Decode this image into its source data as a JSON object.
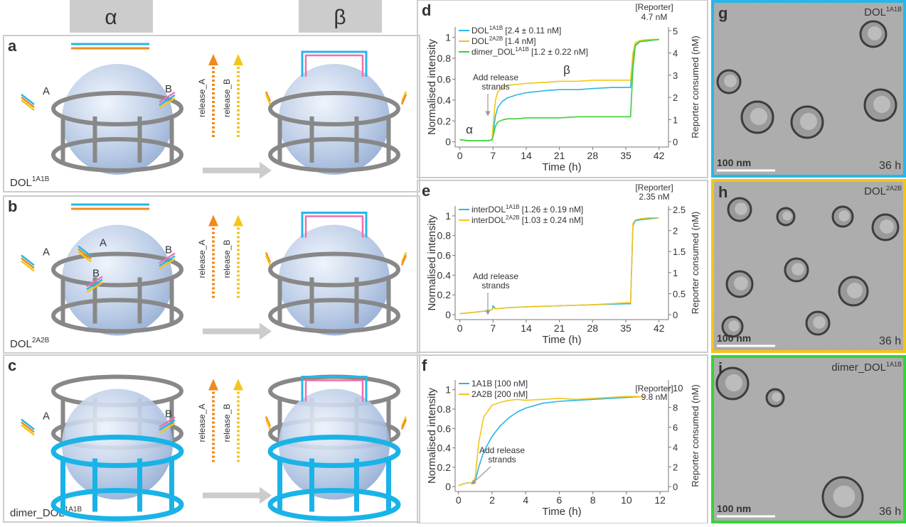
{
  "headers": {
    "alpha": "α",
    "beta": "β"
  },
  "panels": [
    {
      "letter": "a",
      "name": "DOL",
      "sup": "1A1B",
      "strand_labels": [
        "A",
        "B"
      ],
      "release": [
        "release_A",
        "release_B"
      ]
    },
    {
      "letter": "b",
      "name": "DOL",
      "sup": "2A2B",
      "strand_labels": [
        "A",
        "B",
        "A",
        "B"
      ],
      "release": [
        "release_A",
        "release_B"
      ]
    },
    {
      "letter": "c",
      "name": "dimer_DOL",
      "sup": "1A1B",
      "strand_labels": [
        "A",
        "B"
      ],
      "release": [
        "release_A",
        "release_B"
      ]
    }
  ],
  "chart_data": [
    {
      "type": "line",
      "letter": "d",
      "xlabel": "Time (h)",
      "ylabel": "Normalised intensity",
      "y2label": "Reporter consumed (nM)",
      "xlim": [
        -1,
        44
      ],
      "ylim": [
        -0.05,
        1.1
      ],
      "y2lim": [
        -0.235,
        5.17
      ],
      "xticks": [
        0,
        7,
        14,
        21,
        28,
        35,
        42
      ],
      "yticks": [
        0,
        0.2,
        0.4,
        0.6,
        0.8,
        1
      ],
      "y2ticks": [
        0,
        1,
        2,
        3,
        4,
        5
      ],
      "x": [
        0,
        2,
        4,
        6,
        6.8,
        7,
        7.5,
        8,
        9,
        10,
        12,
        14,
        18,
        21,
        25,
        28,
        32,
        35,
        36,
        36.5,
        37,
        38,
        40,
        42
      ],
      "series": [
        {
          "name": "DOL",
          "sup": "1A1B",
          "conc": "[2.4 ± 0.11 nM]",
          "color": "#29b6e6",
          "values": [
            0.02,
            0.01,
            0.01,
            0.01,
            0.02,
            0.08,
            0.25,
            0.33,
            0.39,
            0.42,
            0.45,
            0.47,
            0.49,
            0.5,
            0.5,
            0.51,
            0.52,
            0.52,
            0.52,
            0.8,
            0.93,
            0.96,
            0.97,
            0.98
          ]
        },
        {
          "name": "DOL",
          "sup": "2A2B",
          "conc": "[1.4 nM]",
          "color": "#f5c518",
          "values": [
            0.02,
            0.01,
            0.01,
            0.01,
            0.02,
            0.15,
            0.4,
            0.48,
            0.52,
            0.54,
            0.55,
            0.56,
            0.57,
            0.58,
            0.58,
            0.59,
            0.59,
            0.59,
            0.59,
            0.85,
            0.95,
            0.97,
            0.98,
            0.98
          ]
        },
        {
          "name": "dimer_DOL",
          "sup": "1A1B",
          "conc": "[1.2 ± 0.22 nM]",
          "color": "#35d435",
          "values": [
            0.02,
            0.01,
            0.01,
            0.01,
            0.02,
            0.05,
            0.15,
            0.19,
            0.21,
            0.22,
            0.22,
            0.23,
            0.23,
            0.23,
            0.24,
            0.24,
            0.24,
            0.24,
            0.24,
            0.7,
            0.92,
            0.96,
            0.97,
            0.98
          ]
        }
      ],
      "annotations": [
        "Add release",
        "strands",
        "α",
        "β",
        "[Reporter]",
        "4.7 nM"
      ]
    },
    {
      "type": "line",
      "letter": "e",
      "xlabel": "Time (h)",
      "ylabel": "Normalised intensity",
      "y2label": "Reporter consumed (nM)",
      "xlim": [
        -1,
        44
      ],
      "ylim": [
        -0.05,
        1.1
      ],
      "y2lim": [
        -0.1175,
        2.585
      ],
      "xticks": [
        0,
        7,
        14,
        21,
        28,
        35,
        42
      ],
      "yticks": [
        0,
        0.2,
        0.4,
        0.6,
        0.8,
        1
      ],
      "y2ticks": [
        0,
        0.5,
        1,
        1.5,
        2,
        2.5
      ],
      "x": [
        0,
        2,
        4,
        6,
        6.8,
        7,
        7.5,
        8,
        10,
        14,
        21,
        28,
        35,
        36,
        36.5,
        37,
        38,
        40,
        42
      ],
      "series": [
        {
          "name": "interDOL",
          "sup": "1A1B",
          "conc": "[1.26 ± 0.19 nM]",
          "color": "#29b6e6",
          "values": [
            0.01,
            0.02,
            0.03,
            0.04,
            0.05,
            0.09,
            0.06,
            0.06,
            0.07,
            0.08,
            0.09,
            0.1,
            0.11,
            0.11,
            0.9,
            0.95,
            0.96,
            0.97,
            0.98
          ]
        },
        {
          "name": "interDOL",
          "sup": "2A2B",
          "conc": "[1.03 ± 0.24 nM]",
          "color": "#f5c518",
          "values": [
            0.01,
            0.02,
            0.03,
            0.04,
            0.05,
            0.07,
            0.06,
            0.06,
            0.07,
            0.08,
            0.09,
            0.1,
            0.12,
            0.12,
            0.92,
            0.96,
            0.97,
            0.98,
            0.98
          ]
        }
      ],
      "annotations": [
        "Add release",
        "strands",
        "[Reporter]",
        "2.35 nM"
      ]
    },
    {
      "type": "line",
      "letter": "f",
      "xlabel": "Time (h)",
      "ylabel": "Normalised intensity",
      "y2label": "Reporter consumed (nM)",
      "xlim": [
        -0.2,
        12.5
      ],
      "ylim": [
        -0.05,
        1.1
      ],
      "y2lim": [
        -0.49,
        10.78
      ],
      "xticks": [
        0,
        2,
        4,
        6,
        8,
        10,
        12
      ],
      "yticks": [
        0,
        0.2,
        0.4,
        0.6,
        0.8,
        1
      ],
      "y2ticks": [
        0,
        2,
        4,
        6,
        8,
        10
      ],
      "x": [
        0,
        0.3,
        0.6,
        0.9,
        1,
        1.2,
        1.5,
        2,
        2.5,
        3,
        3.5,
        4,
        5,
        6,
        7,
        8,
        9,
        10,
        11
      ],
      "series": [
        {
          "name": "1A1B",
          "conc": "[100 nM]",
          "color": "#29b6e6",
          "values": [
            0.01,
            0.03,
            0.04,
            0.04,
            0.06,
            0.2,
            0.36,
            0.52,
            0.63,
            0.71,
            0.77,
            0.81,
            0.86,
            0.88,
            0.89,
            0.9,
            0.91,
            0.92,
            0.93
          ]
        },
        {
          "name": "2A2B",
          "conc": "[200 nM]",
          "color": "#f5c518",
          "values": [
            0.01,
            0.03,
            0.04,
            0.04,
            0.1,
            0.45,
            0.72,
            0.84,
            0.87,
            0.89,
            0.9,
            0.89,
            0.9,
            0.91,
            0.9,
            0.91,
            0.92,
            0.93,
            0.93
          ]
        }
      ],
      "annotations": [
        "Add release",
        "strands",
        "[Reporter]",
        "9.8 nM"
      ]
    }
  ],
  "micrographs": [
    {
      "letter": "g",
      "name": "DOL",
      "sup": "1A1B",
      "scale": "100 nm",
      "time": "36 h",
      "color": "#29b6e6"
    },
    {
      "letter": "h",
      "name": "DOL",
      "sup": "2A2B",
      "scale": "100 nm",
      "time": "36 h",
      "color": "#f5c518"
    },
    {
      "letter": "i",
      "name": "dimer_DOL",
      "sup": "1A1B",
      "scale": "100 nm",
      "time": "36 h",
      "color": "#35d435"
    }
  ]
}
